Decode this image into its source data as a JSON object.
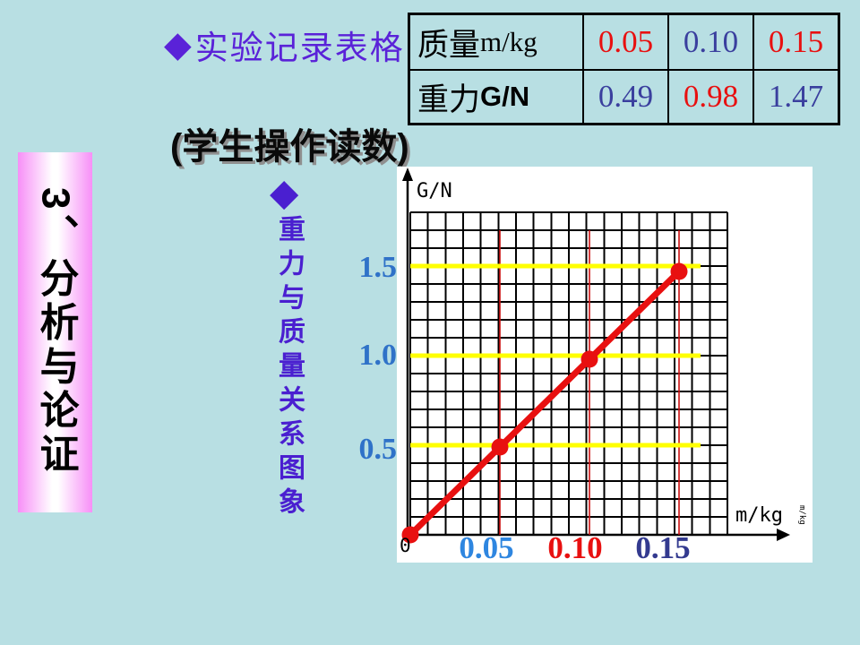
{
  "slide": {
    "background_color": "#b8dfe3",
    "title": {
      "bullet": "◆",
      "text": "实验记录表格",
      "color": "#5a22d8"
    },
    "subtitle": "(学生操作读数)",
    "sidebar": {
      "text": "3、分析与论证",
      "edge_color": "#f78ff7"
    },
    "vertical_caption": {
      "bullet": "◆",
      "text": "重力与质量关系图象",
      "color": "#4a1fd0"
    }
  },
  "table": {
    "rows": [
      {
        "label_cn": "质量",
        "label_unit": "m/kg",
        "values": [
          {
            "text": "0.05",
            "color": "#e81010"
          },
          {
            "text": "0.10",
            "color": "#3a3f9e"
          },
          {
            "text": "0.15",
            "color": "#e81010"
          }
        ]
      },
      {
        "label_cn": "重力",
        "label_unit": "G/N",
        "values": [
          {
            "text": "0.49",
            "color": "#3a3f9e"
          },
          {
            "text": "0.98",
            "color": "#e81010"
          },
          {
            "text": "1.47",
            "color": "#3a3f9e"
          }
        ]
      }
    ]
  },
  "chart_data": {
    "type": "line",
    "title": "重力与质量关系图象",
    "xlabel": "m/kg",
    "ylabel": "G/N",
    "x": [
      0,
      0.05,
      0.1,
      0.15
    ],
    "y": [
      0,
      0.49,
      0.98,
      1.47
    ],
    "xlim": [
      0,
      0.18
    ],
    "ylim": [
      0,
      1.8
    ],
    "grid": true,
    "grid_cells": 18,
    "origin_label": "0",
    "line_color": "#e81010",
    "x_ticks": [
      {
        "text": "0.05",
        "value": 0.05,
        "color": "#2e86e0"
      },
      {
        "text": "0.10",
        "value": 0.1,
        "color": "#e81010"
      },
      {
        "text": "0.15",
        "value": 0.15,
        "color": "#333a8f"
      }
    ],
    "y_ticks": [
      {
        "text": "1.5",
        "value": 1.5,
        "color": "#2f72c8"
      },
      {
        "text": "1.0",
        "value": 1.0,
        "color": "#2f72c8"
      },
      {
        "text": "0.5",
        "value": 0.5,
        "color": "#2f72c8"
      }
    ],
    "guide_lines_y": {
      "values": [
        0.5,
        1.0,
        1.5
      ],
      "color": "#ffff00"
    },
    "guide_lines_x": {
      "values": [
        0.05,
        0.1,
        0.15
      ],
      "color": "#cc1111"
    }
  }
}
